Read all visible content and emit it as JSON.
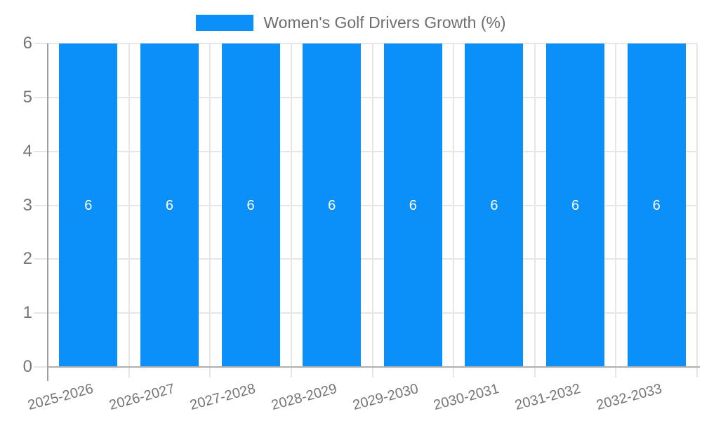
{
  "chart_data": {
    "type": "bar",
    "title": "",
    "legend": {
      "label": "Women's Golf Drivers Growth (%)",
      "position": "top-center"
    },
    "categories": [
      "2025-2026",
      "2026-2027",
      "2027-2028",
      "2028-2029",
      "2029-2030",
      "2030-2031",
      "2031-2032",
      "2032-2033"
    ],
    "series": [
      {
        "name": "Women's Golf Drivers Growth (%)",
        "values": [
          6,
          6,
          6,
          6,
          6,
          6,
          6,
          6
        ],
        "bar_labels": [
          "6",
          "6",
          "6",
          "6",
          "6",
          "6",
          "6",
          "6"
        ]
      }
    ],
    "xlabel": "",
    "ylabel": "",
    "ylim": [
      0,
      6
    ],
    "yticks": [
      0,
      1,
      2,
      3,
      4,
      5,
      6
    ],
    "grid": true,
    "xtick_rotation_deg": -15,
    "colors": {
      "bar": "#0a90f8",
      "bar_label": "#ffffff",
      "grid": "#e6e6e6",
      "axis_line": "#9e9e9e",
      "baseline": "#b0b0b0",
      "tick_text": "#757575",
      "legend_text": "#6e6e6e"
    }
  }
}
